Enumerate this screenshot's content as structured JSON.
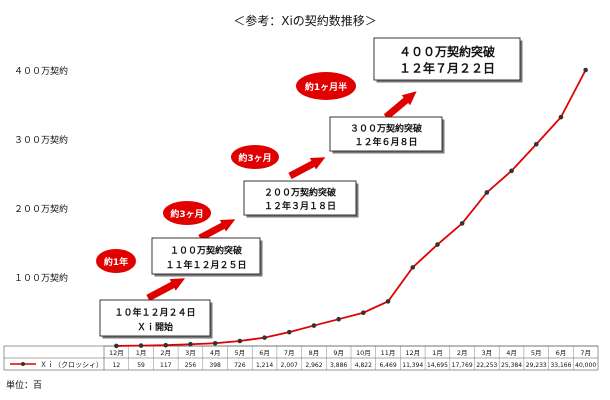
{
  "title": "＜参考：Xiの契約数推移＞",
  "unit_note": "単位：百",
  "chart_data": {
    "type": "line",
    "title": "＜参考：Xiの契約数推移＞",
    "xlabel": "",
    "ylabel": "",
    "series": [
      {
        "name": "Ｘｉ（クロッシィ）",
        "color": "#e00000",
        "values": [
          12,
          59,
          117,
          256,
          398,
          726,
          1214,
          2007,
          2962,
          3886,
          4822,
          6469,
          11394,
          14695,
          17769,
          22253,
          25384,
          29233,
          33166,
          40000
        ]
      }
    ],
    "categories": [
      "12月",
      "1月",
      "2月",
      "3月",
      "4月",
      "5月",
      "6月",
      "7月",
      "8月",
      "9月",
      "10月",
      "11月",
      "12月",
      "1月",
      "2月",
      "3月",
      "4月",
      "5月",
      "6月",
      "7月"
    ],
    "table_values": [
      "12",
      "59",
      "117",
      "256",
      "398",
      "726",
      "1,214",
      "2,007",
      "2,962",
      "3,886",
      "4,822",
      "6,469",
      "11,394",
      "14,695",
      "17,769",
      "22,253",
      "25,384",
      "29,233",
      "33,166",
      "40,000"
    ],
    "ylim": [
      0,
      40000
    ],
    "yticks": [
      {
        "value": 10000,
        "label": "１００万契約"
      },
      {
        "value": 20000,
        "label": "２００万契約"
      },
      {
        "value": 30000,
        "label": "３００万契約"
      },
      {
        "value": 40000,
        "label": "４００万契約"
      }
    ],
    "grid": false,
    "annotations": [
      {
        "id": "start",
        "lines": [
          "１０年１２月２４日",
          "Ｘｉ開始"
        ]
      },
      {
        "id": "m1",
        "lines": [
          "１００万契約突破",
          "１１年１２月２５日"
        ]
      },
      {
        "id": "m2",
        "lines": [
          "２００万契約突破",
          "１２年３月１８日"
        ]
      },
      {
        "id": "m3",
        "lines": [
          "３００万契約突破",
          "１２年６月８日"
        ]
      },
      {
        "id": "m4",
        "lines": [
          "４００万契約突破",
          "１２年７月２２日"
        ]
      }
    ],
    "badges": [
      "約1年",
      "約3ヶ月",
      "約3ヶ月",
      "約1ヶ月半"
    ]
  }
}
